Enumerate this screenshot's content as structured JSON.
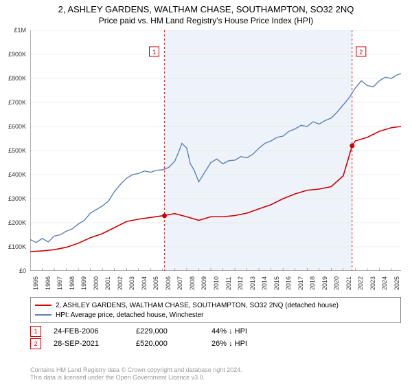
{
  "title1": "2, ASHLEY GARDENS, WALTHAM CHASE, SOUTHAMPTON, SO32 2NQ",
  "title2": "Price paid vs. HM Land Registry's House Price Index (HPI)",
  "chart": {
    "type": "line",
    "background_color": "#ffffff",
    "shaded_region_color": "#eef3fa",
    "grid_color": "#dddddd",
    "axis_color": "#666666",
    "x_years": [
      1995,
      1996,
      1997,
      1998,
      1999,
      2000,
      2001,
      2002,
      2003,
      2004,
      2005,
      2006,
      2007,
      2008,
      2009,
      2010,
      2011,
      2012,
      2013,
      2014,
      2015,
      2016,
      2017,
      2018,
      2019,
      2020,
      2021,
      2022,
      2023,
      2024,
      2025
    ],
    "x_min": 1995,
    "x_max": 2025.8,
    "y_min": 0,
    "y_max": 1000000,
    "y_tick_step": 100000,
    "y_tick_labels": [
      "£0",
      "£100K",
      "£200K",
      "£300K",
      "£400K",
      "£500K",
      "£600K",
      "£700K",
      "£800K",
      "£900K",
      "£1M"
    ],
    "marker_line_color": "#c00000",
    "markers": [
      {
        "label": "1",
        "year": 2006.15,
        "price": 229000
      },
      {
        "label": "2",
        "year": 2021.74,
        "price": 520000
      }
    ],
    "series": [
      {
        "name": "red",
        "color": "#d00000",
        "width": 1.6,
        "points": [
          [
            1995,
            80000
          ],
          [
            1996,
            83000
          ],
          [
            1997,
            88000
          ],
          [
            1998,
            98000
          ],
          [
            1999,
            115000
          ],
          [
            2000,
            138000
          ],
          [
            2001,
            155000
          ],
          [
            2002,
            180000
          ],
          [
            2003,
            205000
          ],
          [
            2004,
            215000
          ],
          [
            2005,
            222000
          ],
          [
            2006,
            229000
          ],
          [
            2007,
            238000
          ],
          [
            2008,
            225000
          ],
          [
            2009,
            210000
          ],
          [
            2010,
            225000
          ],
          [
            2011,
            225000
          ],
          [
            2012,
            230000
          ],
          [
            2013,
            240000
          ],
          [
            2014,
            258000
          ],
          [
            2015,
            275000
          ],
          [
            2016,
            300000
          ],
          [
            2017,
            320000
          ],
          [
            2018,
            335000
          ],
          [
            2019,
            340000
          ],
          [
            2020,
            350000
          ],
          [
            2021,
            395000
          ],
          [
            2021.74,
            520000
          ],
          [
            2022,
            540000
          ],
          [
            2023,
            555000
          ],
          [
            2024,
            580000
          ],
          [
            2025,
            595000
          ],
          [
            2025.8,
            600000
          ]
        ]
      },
      {
        "name": "blue",
        "color": "#5b7fb8",
        "width": 1.4,
        "points": [
          [
            1995,
            130000
          ],
          [
            1995.5,
            118000
          ],
          [
            1996,
            135000
          ],
          [
            1996.5,
            120000
          ],
          [
            1997,
            145000
          ],
          [
            1997.5,
            150000
          ],
          [
            1998,
            165000
          ],
          [
            1998.5,
            175000
          ],
          [
            1999,
            195000
          ],
          [
            1999.5,
            210000
          ],
          [
            2000,
            240000
          ],
          [
            2000.5,
            255000
          ],
          [
            2001,
            270000
          ],
          [
            2001.5,
            290000
          ],
          [
            2002,
            330000
          ],
          [
            2002.5,
            360000
          ],
          [
            2003,
            385000
          ],
          [
            2003.5,
            400000
          ],
          [
            2004,
            405000
          ],
          [
            2004.5,
            415000
          ],
          [
            2005,
            410000
          ],
          [
            2005.5,
            418000
          ],
          [
            2006,
            420000
          ],
          [
            2006.5,
            430000
          ],
          [
            2007,
            455000
          ],
          [
            2007.3,
            490000
          ],
          [
            2007.6,
            530000
          ],
          [
            2008,
            510000
          ],
          [
            2008.3,
            445000
          ],
          [
            2008.6,
            420000
          ],
          [
            2009,
            370000
          ],
          [
            2009.5,
            410000
          ],
          [
            2010,
            450000
          ],
          [
            2010.5,
            465000
          ],
          [
            2011,
            445000
          ],
          [
            2011.5,
            458000
          ],
          [
            2012,
            460000
          ],
          [
            2012.5,
            475000
          ],
          [
            2013,
            470000
          ],
          [
            2013.5,
            485000
          ],
          [
            2014,
            510000
          ],
          [
            2014.5,
            530000
          ],
          [
            2015,
            540000
          ],
          [
            2015.5,
            555000
          ],
          [
            2016,
            560000
          ],
          [
            2016.5,
            580000
          ],
          [
            2017,
            590000
          ],
          [
            2017.5,
            605000
          ],
          [
            2018,
            600000
          ],
          [
            2018.5,
            620000
          ],
          [
            2019,
            610000
          ],
          [
            2019.5,
            625000
          ],
          [
            2020,
            635000
          ],
          [
            2020.5,
            660000
          ],
          [
            2021,
            690000
          ],
          [
            2021.5,
            720000
          ],
          [
            2022,
            760000
          ],
          [
            2022.5,
            790000
          ],
          [
            2023,
            770000
          ],
          [
            2023.5,
            765000
          ],
          [
            2024,
            790000
          ],
          [
            2024.5,
            805000
          ],
          [
            2025,
            800000
          ],
          [
            2025.5,
            815000
          ],
          [
            2025.8,
            820000
          ]
        ]
      }
    ]
  },
  "legend": {
    "items": [
      {
        "color": "#d00000",
        "label": "2, ASHLEY GARDENS, WALTHAM CHASE, SOUTHAMPTON, SO32 2NQ (detached house)"
      },
      {
        "color": "#5b7fb8",
        "label": "HPI: Average price, detached house, Winchester"
      }
    ]
  },
  "sales": [
    {
      "n": "1",
      "date": "24-FEB-2006",
      "price": "£229,000",
      "pct": "44%  ↓  HPI",
      "box_color": "#d00000"
    },
    {
      "n": "2",
      "date": "28-SEP-2021",
      "price": "£520,000",
      "pct": "26%  ↓  HPI",
      "box_color": "#d00000"
    }
  ],
  "footer1": "Contains HM Land Registry data © Crown copyright and database right 2024.",
  "footer2": "This data is licensed under the Open Government Licence v3.0."
}
